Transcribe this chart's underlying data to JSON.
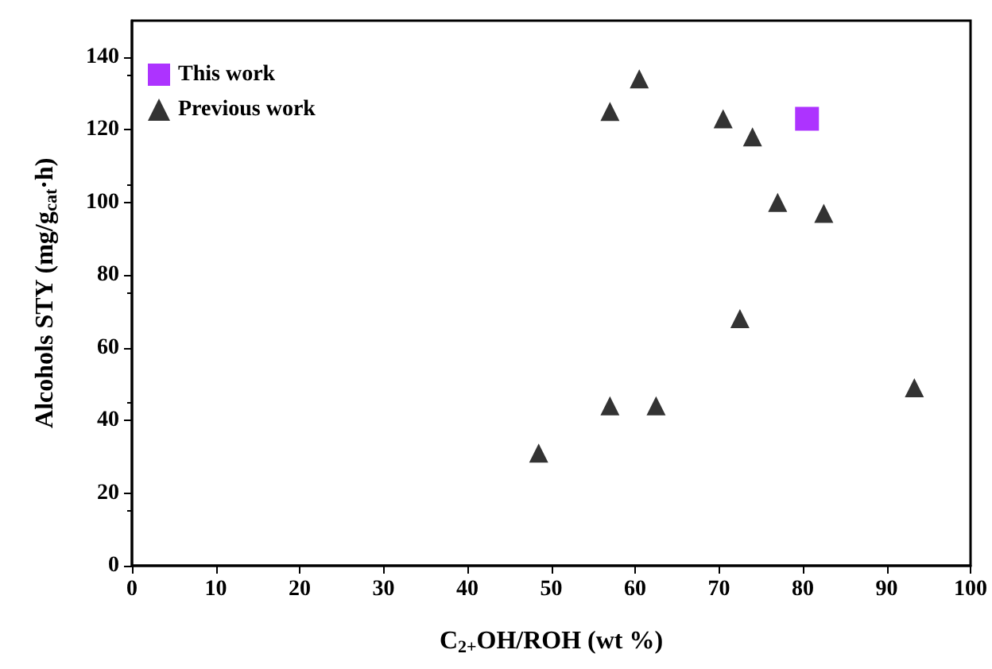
{
  "chart_data": {
    "type": "scatter",
    "xlabel": "C$_{2+}$OH/ROH (wt %)",
    "ylabel": "Alcohols STY (mg/g$_{cat}$·h)",
    "series": [
      {
        "name": "This work",
        "color": "#9900ff",
        "marker": "square",
        "x": [
          80.5
        ],
        "values": [
          123
        ]
      },
      {
        "name": "Previous work",
        "color": "#000000",
        "marker": "triangle",
        "x": [
          48.5,
          57,
          57,
          60.5,
          62.5,
          70.5,
          72.5,
          74,
          77,
          82.5,
          93.3
        ],
        "values": [
          31,
          125,
          44,
          134,
          44,
          123,
          68,
          118,
          100,
          97,
          49
        ]
      }
    ],
    "xlim": [
      0,
      100
    ],
    "xticks": [
      0,
      10,
      20,
      30,
      40,
      50,
      60,
      70,
      80,
      90,
      100
    ],
    "ylim": [
      0,
      150
    ],
    "yticks": [
      0,
      20,
      40,
      60,
      80,
      100,
      120,
      140
    ],
    "grid": false,
    "legend": "top left"
  }
}
